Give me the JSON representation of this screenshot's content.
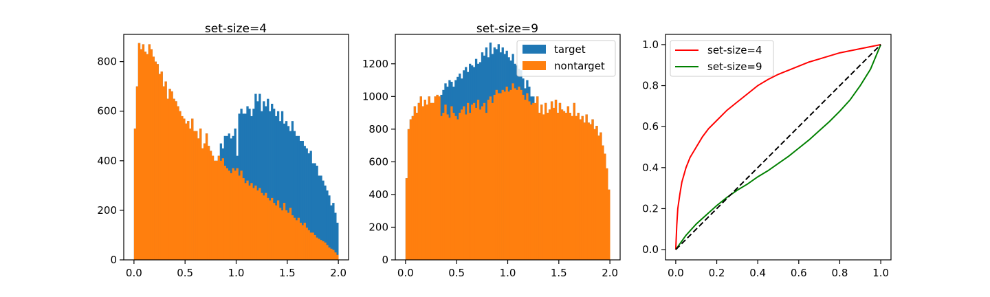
{
  "chart_data": [
    {
      "type": "bar",
      "title": "set-size=4",
      "xlabel": "",
      "ylabel": "",
      "xlim": [
        -0.1,
        2.1
      ],
      "ylim": [
        0,
        910
      ],
      "xticks": [
        0.0,
        0.5,
        1.0,
        1.5,
        2.0
      ],
      "xtick_labels": [
        "0.0",
        "0.5",
        "1.0",
        "1.5",
        "2.0"
      ],
      "yticks": [
        0,
        200,
        400,
        600,
        800
      ],
      "ytick_labels": [
        "0",
        "200",
        "400",
        "600",
        "800"
      ],
      "bin_start": 0.0,
      "bin_width": 0.02,
      "grid": false,
      "series": [
        {
          "color": "#1f77b4",
          "values": [
            530,
            700,
            875,
            850,
            870,
            840,
            830,
            870,
            850,
            820,
            800,
            790,
            750,
            760,
            700,
            720,
            650,
            690,
            680,
            650,
            640,
            620,
            600,
            580,
            570,
            550,
            560,
            530,
            570,
            520,
            520,
            490,
            530,
            450,
            470,
            510,
            460,
            440,
            420,
            400,
            400,
            420,
            470,
            450,
            500,
            500,
            510,
            490,
            500,
            530,
            420,
            590,
            610,
            590,
            590,
            620,
            610,
            580,
            610,
            670,
            640,
            670,
            600,
            640,
            620,
            650,
            600,
            630,
            610,
            580,
            600,
            560,
            600,
            550,
            560,
            540,
            520,
            560,
            520,
            500,
            500,
            480,
            480,
            460,
            450,
            430,
            440,
            390,
            390,
            380,
            340,
            340,
            320,
            300,
            280,
            260,
            220,
            230,
            190,
            150
          ]
        },
        {
          "color": "#ff7f0e",
          "values": [
            530,
            700,
            875,
            850,
            870,
            840,
            830,
            870,
            850,
            820,
            800,
            790,
            750,
            760,
            700,
            720,
            650,
            690,
            680,
            650,
            640,
            620,
            600,
            580,
            570,
            550,
            560,
            530,
            570,
            520,
            520,
            490,
            530,
            450,
            470,
            510,
            460,
            440,
            420,
            400,
            400,
            420,
            400,
            410,
            380,
            370,
            360,
            350,
            370,
            360,
            370,
            340,
            360,
            330,
            310,
            320,
            300,
            310,
            290,
            300,
            280,
            290,
            270,
            260,
            270,
            250,
            240,
            250,
            230,
            220,
            240,
            210,
            200,
            230,
            200,
            190,
            210,
            180,
            170,
            160,
            170,
            150,
            140,
            150,
            130,
            120,
            110,
            110,
            100,
            90,
            85,
            80,
            75,
            70,
            60,
            50,
            45,
            40,
            30,
            20
          ]
        }
      ]
    },
    {
      "type": "bar",
      "title": "set-size=9",
      "xlabel": "",
      "ylabel": "",
      "xlim": [
        -0.1,
        2.1
      ],
      "ylim": [
        0,
        1380
      ],
      "xticks": [
        0.0,
        0.5,
        1.0,
        1.5,
        2.0
      ],
      "xtick_labels": [
        "0.0",
        "0.5",
        "1.0",
        "1.5",
        "2.0"
      ],
      "yticks": [
        0,
        200,
        400,
        600,
        800,
        1000,
        1200
      ],
      "ytick_labels": [
        "0",
        "200",
        "400",
        "600",
        "800",
        "1000",
        "1200"
      ],
      "bin_start": 0.0,
      "bin_width": 0.02,
      "grid": false,
      "legend": {
        "placement": "upper right",
        "entries": [
          "target",
          "nontarget"
        ]
      },
      "series": [
        {
          "name": "target",
          "color": "#1f77b4",
          "values": [
            500,
            800,
            860,
            880,
            940,
            900,
            960,
            1000,
            940,
            980,
            950,
            1000,
            960,
            960,
            1000,
            1010,
            1000,
            1010,
            1040,
            1080,
            1060,
            1100,
            1090,
            1060,
            1100,
            1120,
            1140,
            1110,
            1160,
            1180,
            1150,
            1200,
            1190,
            1180,
            1230,
            1200,
            1210,
            1270,
            1250,
            1300,
            1240,
            1330,
            1260,
            1300,
            1290,
            1320,
            1270,
            1300,
            1260,
            1280,
            1240,
            1220,
            1260,
            1200,
            1190,
            1170,
            1160,
            1110,
            1050,
            1100,
            1060,
            1000,
            1000,
            950,
            1000,
            900,
            950,
            890,
            960,
            900,
            920,
            970,
            930,
            980,
            900,
            960,
            920,
            910,
            900,
            940,
            900,
            880,
            960,
            880,
            900,
            860,
            880,
            840,
            890,
            840,
            830,
            860,
            800,
            820,
            760,
            780,
            700,
            650,
            560,
            430
          ]
        },
        {
          "name": "nontarget",
          "color": "#ff7f0e",
          "values": [
            500,
            800,
            860,
            880,
            940,
            900,
            960,
            1000,
            940,
            980,
            950,
            1000,
            960,
            960,
            1000,
            1010,
            1000,
            880,
            900,
            950,
            890,
            870,
            940,
            900,
            880,
            860,
            900,
            920,
            940,
            890,
            960,
            900,
            950,
            960,
            930,
            980,
            920,
            940,
            960,
            900,
            980,
            1000,
            960,
            1010,
            1040,
            1020,
            1020,
            1040,
            1030,
            1060,
            1030,
            1040,
            1080,
            1050,
            1040,
            1060,
            1040,
            1010,
            980,
            1020,
            970,
            950,
            960,
            960,
            1000,
            900,
            950,
            890,
            960,
            900,
            920,
            970,
            930,
            980,
            900,
            960,
            920,
            910,
            900,
            940,
            900,
            880,
            960,
            880,
            900,
            860,
            880,
            840,
            890,
            840,
            830,
            860,
            800,
            820,
            760,
            780,
            700,
            650,
            560,
            430
          ]
        }
      ]
    },
    {
      "type": "line",
      "title": "",
      "xlabel": "",
      "ylabel": "",
      "xlim": [
        -0.05,
        1.05
      ],
      "ylim": [
        -0.05,
        1.05
      ],
      "xticks": [
        0.0,
        0.2,
        0.4,
        0.6,
        0.8,
        1.0
      ],
      "xtick_labels": [
        "0.0",
        "0.2",
        "0.4",
        "0.6",
        "0.8",
        "1.0"
      ],
      "yticks": [
        0.0,
        0.2,
        0.4,
        0.6,
        0.8,
        1.0
      ],
      "ytick_labels": [
        "0.0",
        "0.2",
        "0.4",
        "0.6",
        "0.8",
        "1.0"
      ],
      "grid": false,
      "legend": {
        "placement": "upper left",
        "entries": [
          "set-size=4",
          "set-size=9"
        ]
      },
      "series": [
        {
          "name": "set-size=4",
          "color": "#ff0000",
          "style": "solid",
          "x": [
            0.0,
            0.005,
            0.01,
            0.02,
            0.03,
            0.05,
            0.07,
            0.1,
            0.13,
            0.16,
            0.2,
            0.25,
            0.3,
            0.35,
            0.4,
            0.45,
            0.5,
            0.55,
            0.6,
            0.65,
            0.7,
            0.75,
            0.8,
            0.85,
            0.9,
            0.95,
            1.0
          ],
          "y": [
            0.0,
            0.12,
            0.2,
            0.27,
            0.33,
            0.4,
            0.45,
            0.5,
            0.55,
            0.59,
            0.63,
            0.68,
            0.72,
            0.76,
            0.8,
            0.83,
            0.855,
            0.875,
            0.895,
            0.915,
            0.93,
            0.945,
            0.96,
            0.97,
            0.98,
            0.99,
            1.0
          ]
        },
        {
          "name": "set-size=9",
          "color": "#008000",
          "style": "solid",
          "x": [
            0.0,
            0.05,
            0.1,
            0.15,
            0.2,
            0.25,
            0.3,
            0.35,
            0.4,
            0.45,
            0.5,
            0.55,
            0.6,
            0.65,
            0.7,
            0.75,
            0.8,
            0.85,
            0.9,
            0.95,
            1.0
          ],
          "y": [
            0.0,
            0.07,
            0.125,
            0.17,
            0.215,
            0.255,
            0.29,
            0.32,
            0.355,
            0.385,
            0.42,
            0.455,
            0.495,
            0.535,
            0.58,
            0.625,
            0.675,
            0.73,
            0.8,
            0.88,
            1.0
          ]
        },
        {
          "name": "",
          "color": "#000000",
          "style": "dashed",
          "x": [
            0.0,
            1.0
          ],
          "y": [
            0.0,
            1.0
          ]
        }
      ]
    }
  ]
}
